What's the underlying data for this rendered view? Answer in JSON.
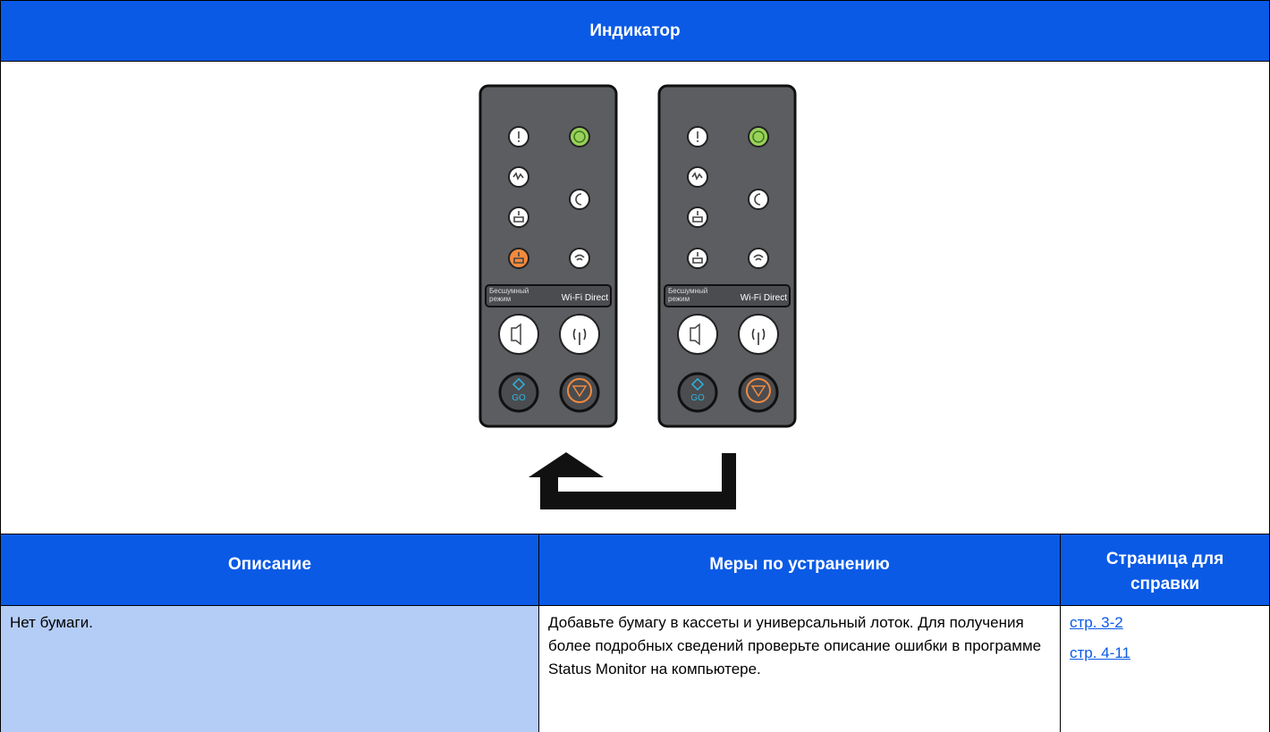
{
  "header": {
    "title": "Индикатор"
  },
  "panels": [
    {
      "silent_label": [
        "Бесшумный",
        "режим"
      ],
      "wifi_label": "Wi-Fi Direct",
      "go_label": "GO"
    },
    {
      "silent_label": [
        "Бесшумный",
        "режим"
      ],
      "wifi_label": "Wi-Fi Direct",
      "go_label": "GO"
    }
  ],
  "table": {
    "headers": [
      "Описание",
      "Меры по устранению",
      "Страница для справки"
    ],
    "rows": [
      {
        "description": "Нет бумаги.",
        "action": "Добавьте бумагу в кассеты и универсальный лоток. Для получения более подробных сведений проверьте описание ошибки в программе Status Monitor на компьютере.",
        "pages": [
          "стр. 3-2",
          "стр. 4-11"
        ]
      }
    ]
  }
}
